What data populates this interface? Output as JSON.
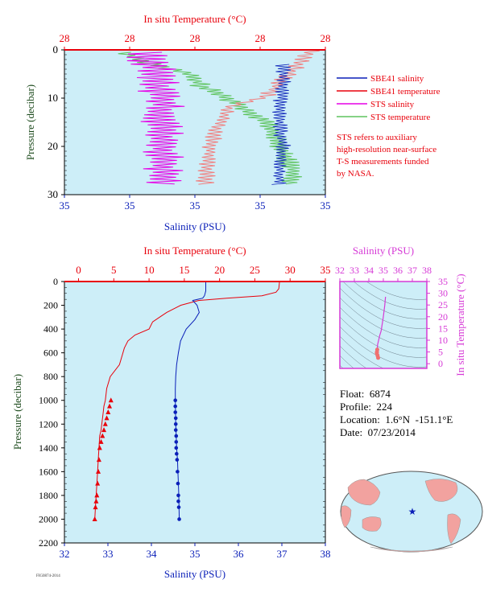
{
  "colors": {
    "background": "#cdeef8",
    "temperature": "#e8000b",
    "salinity": "#0a1fb8",
    "sts_salinity": "#e600e6",
    "sts_temperature": "#5fc45f",
    "ts_color": "#d63ad6",
    "pressure_label": "#1c4a1c"
  },
  "float_info": {
    "float": "Float:  6874",
    "profile": "Profile:  224",
    "location": "Location:  1.6°N  -151.1°E",
    "date": "Date:  07/23/2014"
  },
  "legend": {
    "items": [
      {
        "label": "SBE41 salinity",
        "color": "#0a1fb8"
      },
      {
        "label": "SBE41 temperature",
        "color": "#e8000b"
      },
      {
        "label": "STS salinity",
        "color": "#e600e6"
      },
      {
        "label": "STS temperature",
        "color": "#5fc45f"
      }
    ],
    "note": [
      "STS refers to auxiliary",
      "high-resolution near-surface",
      "T-S measurements funded",
      "by NASA."
    ]
  },
  "footer_tag": "FIG0874-2014",
  "chart_data": [
    {
      "type": "line",
      "panel": "near-surface",
      "top_xlabel": "In situ Temperature (°C)",
      "top_ticks": [
        "28",
        "28",
        "28",
        "28",
        "28"
      ],
      "bottom_xlabel": "Salinity (PSU)",
      "bottom_ticks": [
        "35",
        "35",
        "35",
        "35",
        "35"
      ],
      "ylabel": "Pressure (decibar)",
      "y_ticks": [
        0,
        10,
        20,
        30
      ],
      "ylim": [
        30,
        0
      ],
      "salinity_xlim": [
        34.6,
        35.4
      ],
      "temperature_xlim": [
        27.6,
        28.4
      ],
      "series": [
        {
          "name": "SBE41 salinity",
          "x": [
            35.27,
            35.27,
            35.26,
            35.26,
            35.27,
            35.26,
            35.26
          ],
          "y": [
            3,
            8,
            12,
            16,
            20,
            24,
            28
          ]
        },
        {
          "name": "SBE41 temperature",
          "x": [
            28.36,
            28.22,
            28.1,
            28.07,
            28.05,
            28.04,
            28.03
          ],
          "y": [
            0.2,
            9.5,
            12,
            16,
            20,
            24,
            28
          ]
        },
        {
          "name": "STS salinity",
          "x": [
            34.85,
            34.88,
            34.9,
            34.9,
            34.9,
            34.9,
            34.9
          ],
          "y": [
            0.5,
            5,
            10,
            15,
            20,
            25,
            28
          ]
        },
        {
          "name": "STS temperature",
          "x": [
            27.78,
            27.85,
            27.98,
            28.02,
            28.1,
            28.22,
            28.26,
            28.3,
            28.3
          ],
          "y": [
            0.5,
            2.5,
            5,
            7.5,
            10,
            15,
            20,
            25,
            28
          ]
        }
      ]
    },
    {
      "type": "line",
      "panel": "full-profile",
      "top_xlabel": "In situ Temperature (°C)",
      "top_ticks": [
        0,
        5,
        10,
        15,
        20,
        25,
        30,
        35
      ],
      "temperature_xlim": [
        -2,
        35
      ],
      "bottom_xlabel": "Salinity (PSU)",
      "bottom_ticks": [
        32,
        33,
        34,
        35,
        36,
        37,
        38
      ],
      "salinity_xlim": [
        32,
        38
      ],
      "ylabel": "Pressure (decibar)",
      "y_ticks": [
        0,
        200,
        400,
        600,
        800,
        1000,
        1200,
        1400,
        1600,
        1800,
        2000,
        2200
      ],
      "ylim": [
        2200,
        0
      ],
      "series": [
        {
          "name": "Temperature",
          "x": [
            28.5,
            28.4,
            28.0,
            26.0,
            21.0,
            17.0,
            14.5,
            12.5,
            11.5,
            10.5,
            10.0,
            8.0,
            7.0,
            6.5,
            6.2,
            5.8,
            4.5,
            4.0,
            3.8,
            3.6,
            3.5,
            3.3,
            3.2,
            3.0,
            2.9,
            2.8,
            2.7,
            2.6,
            2.5,
            2.4,
            2.3
          ],
          "y": [
            0,
            60,
            90,
            120,
            140,
            160,
            200,
            260,
            300,
            340,
            400,
            450,
            500,
            560,
            620,
            700,
            800,
            900,
            1000,
            1050,
            1100,
            1200,
            1250,
            1300,
            1400,
            1500,
            1600,
            1700,
            1800,
            1900,
            2000
          ]
        },
        {
          "name": "Salinity",
          "x": [
            35.25,
            35.25,
            35.22,
            35.18,
            34.95,
            35.05,
            35.1,
            35.0,
            34.8,
            34.67,
            34.62,
            34.58,
            34.56,
            34.55,
            34.55,
            34.56,
            34.57,
            34.58,
            34.6,
            34.61,
            34.62,
            34.63,
            34.64
          ],
          "y": [
            0,
            80,
            120,
            140,
            160,
            200,
            260,
            320,
            400,
            500,
            600,
            700,
            800,
            900,
            1000,
            1200,
            1300,
            1400,
            1500,
            1600,
            1700,
            1800,
            2000
          ]
        }
      ],
      "markers": {
        "temperature": {
          "x": [
            4.6,
            4.4,
            4.2,
            4.0,
            3.8,
            3.6,
            3.4,
            3.2,
            3.0,
            2.9,
            2.8,
            2.7,
            2.6,
            2.5,
            2.4,
            2.3
          ],
          "y": [
            1000,
            1050,
            1100,
            1150,
            1200,
            1250,
            1300,
            1350,
            1400,
            1500,
            1600,
            1700,
            1800,
            1850,
            1900,
            2000
          ]
        },
        "salinity": {
          "x": [
            34.55,
            34.55,
            34.55,
            34.56,
            34.56,
            34.56,
            34.57,
            34.57,
            34.57,
            34.58,
            34.59,
            34.6,
            34.61,
            34.62,
            34.62,
            34.63,
            34.64
          ],
          "y": [
            1000,
            1050,
            1100,
            1150,
            1200,
            1250,
            1300,
            1350,
            1400,
            1450,
            1500,
            1600,
            1700,
            1800,
            1850,
            1900,
            2000
          ]
        }
      }
    },
    {
      "type": "scatter",
      "panel": "T-S diagram",
      "xlabel": "Salinity (PSU)",
      "ylabel": "In situ Temperature (°C)",
      "x_ticks": [
        32,
        33,
        34,
        35,
        36,
        37,
        38
      ],
      "y_ticks": [
        0,
        5,
        10,
        15,
        20,
        25,
        30,
        35
      ],
      "xlim": [
        32,
        38
      ],
      "ylim": [
        -2,
        35
      ],
      "series": [
        {
          "x": [
            35.15,
            35.1,
            35.0,
            34.9,
            34.85,
            34.75,
            34.6,
            34.58,
            34.56,
            34.55,
            34.6,
            34.64
          ],
          "y": [
            28.5,
            25,
            20,
            16,
            14,
            12,
            8,
            6,
            5,
            4.5,
            3.5,
            2.5
          ]
        }
      ]
    },
    {
      "type": "map",
      "panel": "location-map",
      "marker": {
        "lat": 1.6,
        "lon": -151.1
      }
    }
  ]
}
